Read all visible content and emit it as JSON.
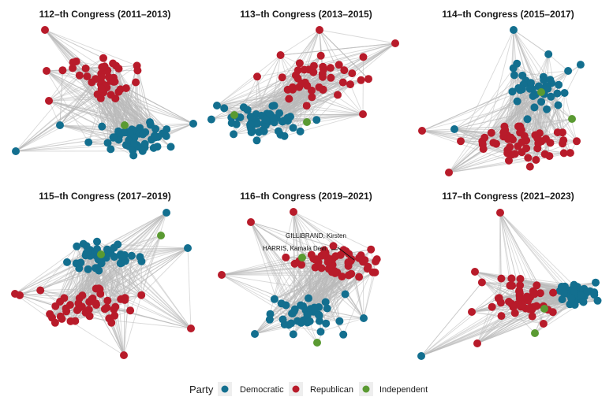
{
  "figure": {
    "colors": {
      "Democratic": "#136f8f",
      "Republican": "#b81b2a",
      "Independent": "#5a9a32",
      "edge": "#b9b9b9"
    },
    "panels": [
      {
        "title": "112–th Congress (2011–2013)",
        "seed": 11,
        "democrats": 52,
        "republicans": 46,
        "independents": 1,
        "layout": "dem-bottom-right"
      },
      {
        "title": "113–th Congress (2013–2015)",
        "seed": 23,
        "democrats": 54,
        "republicans": 45,
        "independents": 2,
        "layout": "dem-bottom-left"
      },
      {
        "title": "114–th Congress (2015–2017)",
        "seed": 37,
        "democrats": 45,
        "republicans": 54,
        "independents": 2,
        "layout": "dem-top"
      },
      {
        "title": "115–th Congress (2017–2019)",
        "seed": 41,
        "democrats": 47,
        "republicans": 51,
        "independents": 2,
        "layout": "dem-top-left"
      },
      {
        "title": "116–th Congress (2019–2021)",
        "seed": 53,
        "democrats": 45,
        "republicans": 53,
        "independents": 2,
        "layout": "dem-bottom",
        "annotations": [
          {
            "label": "GILLIBRAND, Kirsten"
          },
          {
            "label": "HARRIS, Kamala Devi"
          }
        ]
      },
      {
        "title": "117–th Congress (2021–2023)",
        "seed": 67,
        "democrats": 48,
        "republicans": 50,
        "independents": 2,
        "layout": "dem-right"
      }
    ]
  },
  "legend": {
    "title": "Party",
    "items": [
      {
        "label": "Democratic",
        "color": "#136f8f"
      },
      {
        "label": "Republican",
        "color": "#b81b2a"
      },
      {
        "label": "Independent",
        "color": "#5a9a32"
      }
    ]
  }
}
